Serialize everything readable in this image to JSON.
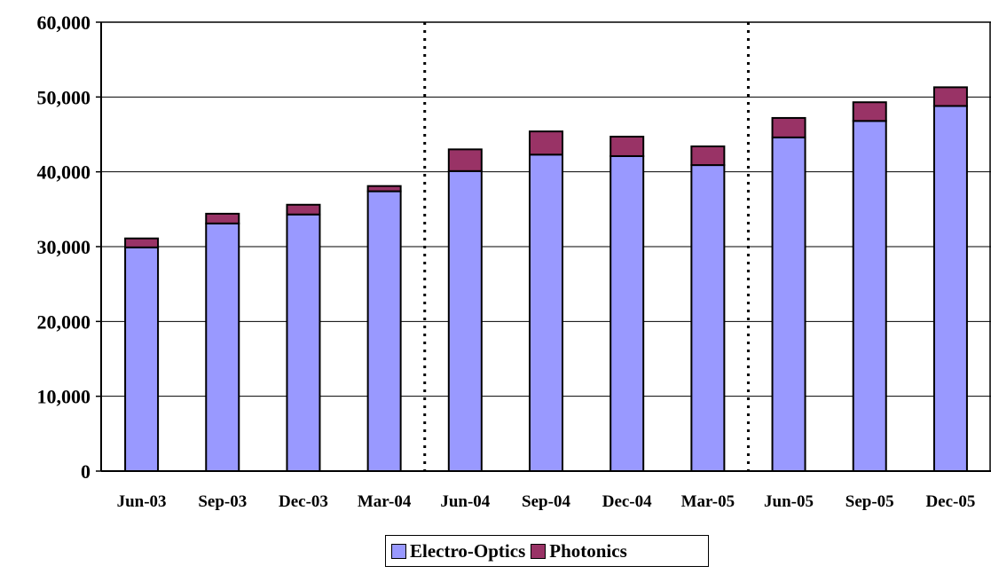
{
  "chart_data": {
    "type": "bar",
    "stacked": true,
    "categories": [
      "Jun-03",
      "Sep-03",
      "Dec-03",
      "Mar-04",
      "Jun-04",
      "Sep-04",
      "Dec-04",
      "Mar-05",
      "Jun-05",
      "Sep-05",
      "Dec-05"
    ],
    "series": [
      {
        "name": "Electro-Optics",
        "color": "#9999ff",
        "values": [
          29900,
          33100,
          34300,
          37400,
          40100,
          42300,
          42100,
          40900,
          44600,
          46800,
          48800
        ]
      },
      {
        "name": "Photonics",
        "color": "#993366",
        "values": [
          1200,
          1300,
          1300,
          700,
          2900,
          3100,
          2600,
          2500,
          2600,
          2500,
          2500
        ]
      }
    ],
    "title": "",
    "xlabel": "",
    "ylabel": "",
    "ylim": [
      0,
      60000
    ],
    "yticks": [
      0,
      10000,
      20000,
      30000,
      40000,
      50000,
      60000
    ],
    "ytick_labels": [
      "0",
      "10,000",
      "20,000",
      "30,000",
      "40,000",
      "50,000",
      "60,000"
    ],
    "grid": true,
    "separators_after": [
      "Mar-04",
      "Mar-05"
    ],
    "legend": "bottom-center"
  },
  "legend": {
    "items": [
      {
        "label": "Electro-Optics",
        "color": "#9999ff"
      },
      {
        "label": "Photonics",
        "color": "#993366"
      }
    ]
  }
}
